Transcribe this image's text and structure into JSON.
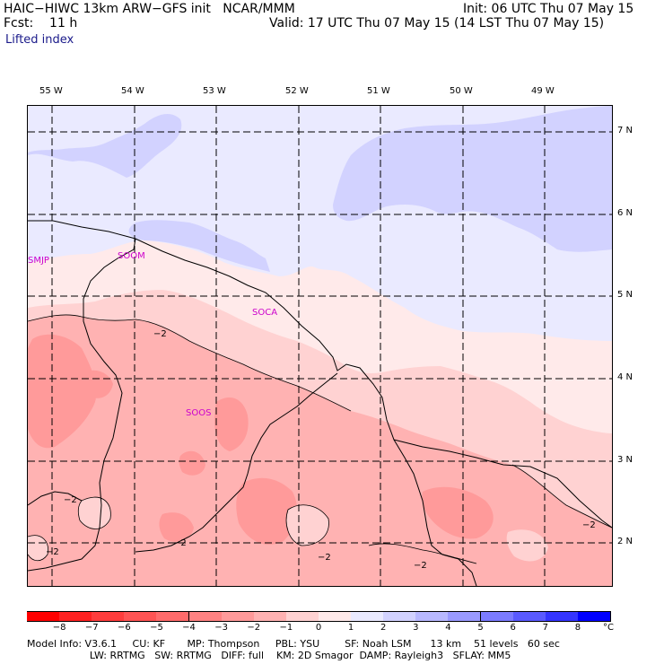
{
  "header": {
    "title": "HAIC−HIWC 13km ARW−GFS init   NCAR/MMM",
    "init": "Init: 06 UTC Thu 07 May 15",
    "fcst": "Fcst:    11 h",
    "valid": "Valid: 17 UTC Thu 07 May 15 (14 LST Thu 07 May 15)",
    "field": "Lifted index"
  },
  "lon_labels": [
    "55 W",
    "54 W",
    "53 W",
    "52 W",
    "51 W",
    "50 W",
    "49 W"
  ],
  "lat_labels": [
    "7 N",
    "6 N",
    "5 N",
    "4 N",
    "3 N",
    "2 N"
  ],
  "stations": [
    "SMJP",
    "SOOM",
    "SOCA",
    "SOOS"
  ],
  "contour_label": "−2",
  "colorbar": {
    "ticks": [
      "−8",
      "−7",
      "−6",
      "−5",
      "−4",
      "−3",
      "−2",
      "−1",
      "0",
      "1",
      "2",
      "3",
      "4",
      "5",
      "6",
      "7",
      "8"
    ],
    "unit": "°C",
    "colors": [
      "#ff0000",
      "#ff2222",
      "#ff3d3d",
      "#ff5454",
      "#ff6b6b",
      "#ff8282",
      "#ff9a9a",
      "#ffb2b2",
      "#ffd2d2",
      "#ffeaea",
      "#eaeaff",
      "#d2d2ff",
      "#b8b8ff",
      "#9a9aff",
      "#7b7bff",
      "#5a5aff",
      "#3535ff",
      "#0000ff"
    ]
  },
  "footer": {
    "line1": "Model Info: V3.6.1     CU: KF       MP: Thompson     PBL: YSU        SF: Noah LSM      13 km    51 levels   60 sec",
    "line2": "                    LW: RRTMG   SW: RRTMG   DIFF: full    KM: 2D Smagor  DAMP: Rayleigh3   SFLAY: MM5"
  }
}
